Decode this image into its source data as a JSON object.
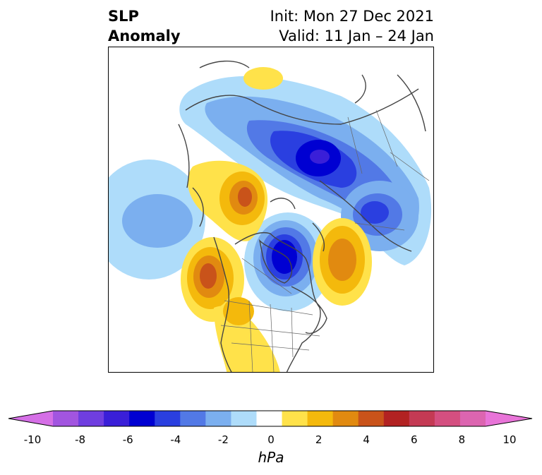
{
  "header": {
    "title_line1": "SLP",
    "title_line2": "Anomaly",
    "init_text": "Init: Mon 27 Dec 2021",
    "valid_text": "Valid: 11 Jan – 24 Jan"
  },
  "colorbar": {
    "unit": "hPa",
    "ticks": [
      "-10",
      "-8",
      "-6",
      "-4",
      "-2",
      "0",
      "2",
      "4",
      "6",
      "8",
      "10"
    ],
    "levels": [
      -10,
      -9,
      -8,
      -7,
      -6,
      -5,
      -4,
      -3,
      -2,
      -1,
      1,
      2,
      3,
      4,
      5,
      6,
      7,
      8,
      9,
      10
    ],
    "colors": [
      "#d56fe6",
      "#a255e0",
      "#6f3ee0",
      "#3a1fd8",
      "#0000d2",
      "#2a3fe0",
      "#5279e6",
      "#7bafef",
      "#aedcfa",
      "#ffffff",
      "#ffe24a",
      "#f4b90c",
      "#e18a10",
      "#c9531a",
      "#b22222",
      "#c43a54",
      "#d44f80",
      "#dc65b0",
      "#e874d8"
    ]
  },
  "map": {
    "projection": "polar stereographic, North Pole",
    "anomalies": [
      {
        "region": "Siberia / Arctic",
        "sign": "negative",
        "peak": -7
      },
      {
        "region": "Hudson Bay",
        "sign": "negative",
        "peak": -7
      },
      {
        "region": "Scandinavia",
        "sign": "negative",
        "peak": -5
      },
      {
        "region": "North Pacific",
        "sign": "negative",
        "peak": -3
      },
      {
        "region": "Alaska / Bering",
        "sign": "positive",
        "peak": 4
      },
      {
        "region": "Gulf of Alaska / W. Canada",
        "sign": "positive",
        "peak": 4
      },
      {
        "region": "North Atlantic",
        "sign": "positive",
        "peak": 3
      },
      {
        "region": "Western USA",
        "sign": "positive",
        "peak": 2
      },
      {
        "region": "Arctic Europe",
        "sign": "positive",
        "peak": 2
      }
    ]
  }
}
